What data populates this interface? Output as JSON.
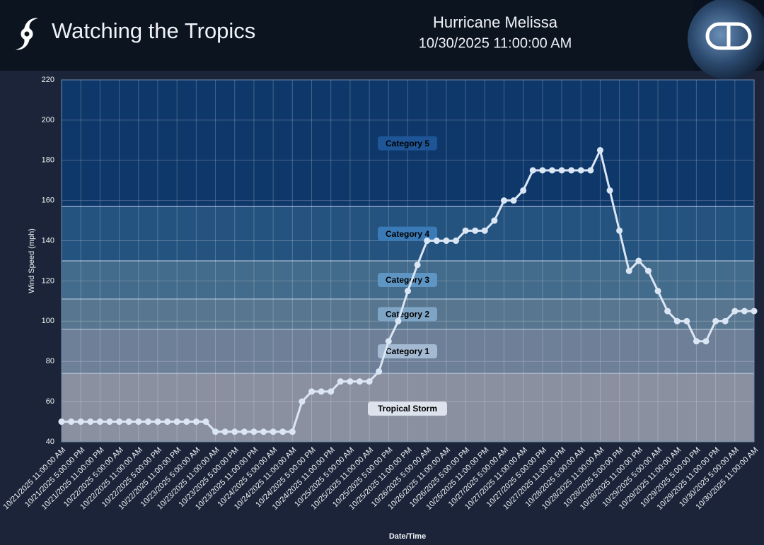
{
  "header": {
    "title": "Watching the Tropics",
    "storm": "Hurricane Melissa",
    "timestamp": "10/30/2025 11:00:00 AM"
  },
  "chart_data": {
    "type": "line",
    "x_label": "Date/Time",
    "y_label": "Wind Speed (mph)",
    "categories": [
      "10/21/2025 11:00:00 AM",
      null,
      "10/21/2025 5:00:00 PM",
      null,
      "10/21/2025 11:00:00 PM",
      null,
      "10/22/2025 5:00:00 AM",
      null,
      "10/22/2025 11:00:00 AM",
      null,
      "10/22/2025 5:00:00 PM",
      null,
      "10/22/2025 11:00:00 PM",
      null,
      "10/23/2025 5:00:00 AM",
      null,
      "10/23/2025 11:00:00 AM",
      null,
      "10/23/2025 5:00:00 PM",
      null,
      "10/23/2025 11:00:00 PM",
      null,
      "10/24/2025 5:00:00 AM",
      null,
      "10/24/2025 11:00:00 AM",
      null,
      "10/24/2025 5:00:00 PM",
      null,
      "10/24/2025 11:00:00 PM",
      null,
      "10/25/2025 5:00:00 AM",
      null,
      "10/25/2025 11:00:00 AM",
      null,
      "10/25/2025 5:00:00 PM",
      null,
      "10/25/2025 11:00:00 PM",
      null,
      "10/26/2025 5:00:00 AM",
      null,
      "10/26/2025 11:00:00 AM",
      null,
      "10/26/2025 5:00:00 PM",
      null,
      "10/26/2025 11:00:00 PM",
      null,
      "10/27/2025 5:00:00 AM",
      null,
      "10/27/2025 11:00:00 AM",
      null,
      "10/27/2025 5:00:00 PM",
      null,
      "10/27/2025 11:00:00 PM",
      null,
      "10/28/2025 5:00:00 AM",
      null,
      "10/28/2025 11:00:00 AM",
      null,
      "10/28/2025 5:00:00 PM",
      null,
      "10/28/2025 11:00:00 PM",
      null,
      "10/29/2025 5:00:00 AM",
      null,
      "10/29/2025 11:00:00 AM",
      null,
      "10/29/2025 5:00:00 PM",
      null,
      "10/29/2025 11:00:00 PM",
      null,
      "10/30/2025 5:00:00 AM",
      null,
      "10/30/2025 11:00:00 AM"
    ],
    "series": [
      {
        "color": "#dbe6f5",
        "values": [
          50,
          50,
          50,
          50,
          50,
          50,
          50,
          50,
          50,
          50,
          50,
          50,
          50,
          50,
          50,
          50,
          45,
          45,
          45,
          45,
          45,
          45,
          45,
          45,
          45,
          60,
          65,
          65,
          65,
          70,
          70,
          70,
          70,
          75,
          90,
          100,
          115,
          128,
          140,
          140,
          140,
          140,
          145,
          145,
          145,
          150,
          160,
          160,
          165,
          175,
          175,
          175,
          175,
          175,
          175,
          175,
          185,
          165,
          145,
          125,
          130,
          125,
          115,
          105,
          100,
          100,
          90,
          90,
          100,
          100,
          105,
          105,
          105
        ]
      }
    ],
    "bands": [
      {
        "name": "Tropical Storm",
        "from": 39,
        "color": "#8a909f",
        "label_color": "#dde3ec"
      },
      {
        "name": "Category 1",
        "from": 74,
        "color": "#6e7f98",
        "label_color": "#a3bad2"
      },
      {
        "name": "Category 2",
        "from": 96,
        "color": "#58768f",
        "label_color": "#7ea5c5"
      },
      {
        "name": "Category 3",
        "from": 111,
        "color": "#436b8b",
        "label_color": "#5f95c2"
      },
      {
        "name": "Category 4",
        "from": 130,
        "color": "#24537f",
        "label_color": "#3a7ab6"
      },
      {
        "name": "Category 5",
        "from": 157,
        "color": "#0f386a",
        "label_color": "#1d5596"
      }
    ],
    "ylim": [
      40,
      220
    ],
    "yticks": [
      40,
      60,
      80,
      100,
      120,
      140,
      160,
      180,
      200,
      220
    ],
    "grid": true
  }
}
